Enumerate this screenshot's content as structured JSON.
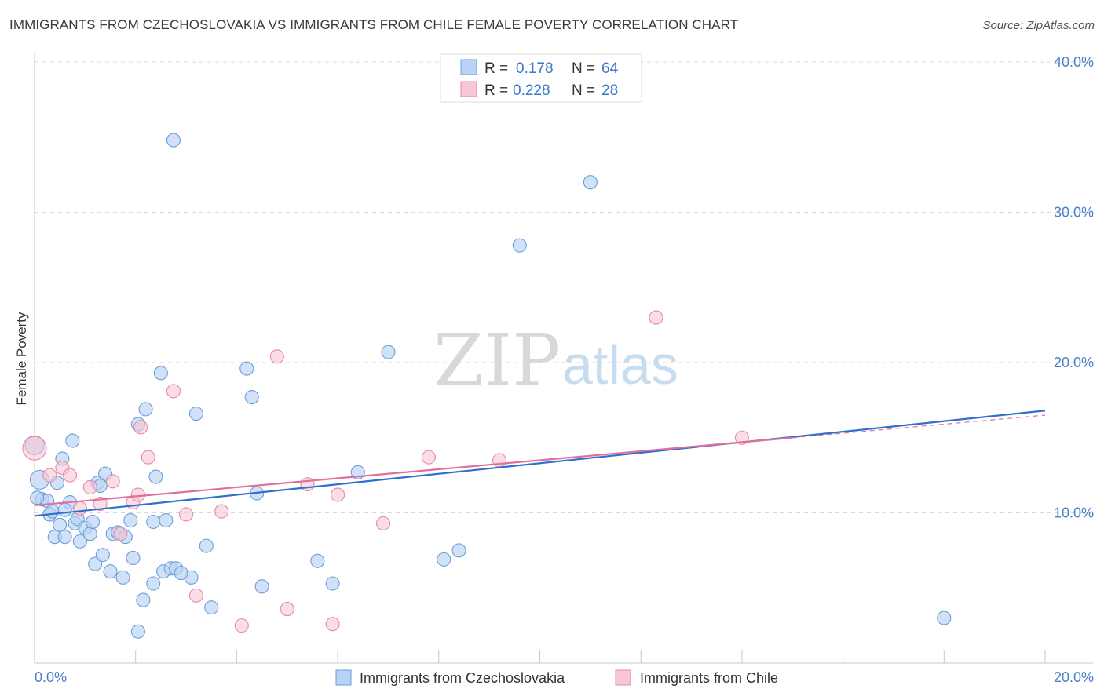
{
  "header": {
    "title": "IMMIGRANTS FROM CZECHOSLOVAKIA VS IMMIGRANTS FROM CHILE FEMALE POVERTY CORRELATION CHART",
    "source": "Source: ZipAtlas.com"
  },
  "watermark": {
    "zip": "ZIP",
    "atlas": "atlas"
  },
  "legend": {
    "rows": [
      {
        "r_label": "R =",
        "r_value": "0.178",
        "n_label": "N =",
        "n_value": "64"
      },
      {
        "r_label": "R =",
        "r_value": "0.228",
        "n_label": "N =",
        "n_value": "28"
      }
    ]
  },
  "colors": {
    "blue_fill": "#b8d3f5",
    "blue_stroke": "#6b9fd8",
    "blue_line": "#2e6fd0",
    "pink_fill": "#f8c6d6",
    "pink_stroke": "#e68aa8",
    "pink_line": "#e0709a",
    "grid": "#d8d8d8",
    "tick_text": "#4a80c8"
  },
  "chart_data": {
    "type": "scatter",
    "title": "IMMIGRANTS FROM CZECHOSLOVAKIA VS IMMIGRANTS FROM CHILE FEMALE POVERTY CORRELATION CHART",
    "xlabel": "",
    "ylabel": "Female Poverty",
    "xlim": [
      0,
      20
    ],
    "ylim": [
      0,
      40
    ],
    "x_tick_labels": [
      "0.0%",
      "20.0%"
    ],
    "y_ticks": [
      10,
      20,
      30,
      40
    ],
    "y_tick_labels": [
      "10.0%",
      "20.0%",
      "30.0%",
      "40.0%"
    ],
    "grid": true,
    "series": [
      {
        "name": "Immigrants from Czechoslovakia",
        "color": "#6b9fd8",
        "R": 0.178,
        "N": 64,
        "trend": {
          "x": [
            0,
            20
          ],
          "y": [
            9.8,
            16.8
          ]
        },
        "points": [
          [
            0.0,
            14.5
          ],
          [
            0.1,
            12.2
          ],
          [
            0.15,
            10.9
          ],
          [
            0.25,
            10.8
          ],
          [
            0.3,
            9.9
          ],
          [
            0.35,
            10.1
          ],
          [
            0.4,
            8.4
          ],
          [
            0.45,
            12.0
          ],
          [
            0.5,
            9.2
          ],
          [
            0.55,
            13.6
          ],
          [
            0.6,
            8.4
          ],
          [
            0.7,
            10.7
          ],
          [
            0.75,
            14.8
          ],
          [
            0.8,
            9.3
          ],
          [
            0.85,
            9.6
          ],
          [
            0.9,
            8.1
          ],
          [
            1.0,
            9.0
          ],
          [
            1.1,
            8.6
          ],
          [
            1.15,
            9.4
          ],
          [
            1.2,
            6.6
          ],
          [
            1.25,
            12.0
          ],
          [
            1.35,
            7.2
          ],
          [
            1.4,
            12.6
          ],
          [
            1.5,
            6.1
          ],
          [
            1.55,
            8.6
          ],
          [
            1.65,
            8.7
          ],
          [
            1.75,
            5.7
          ],
          [
            1.8,
            8.4
          ],
          [
            1.9,
            9.5
          ],
          [
            1.95,
            7.0
          ],
          [
            2.05,
            15.9
          ],
          [
            2.05,
            2.1
          ],
          [
            2.15,
            4.2
          ],
          [
            2.2,
            16.9
          ],
          [
            2.35,
            9.4
          ],
          [
            2.35,
            5.3
          ],
          [
            2.4,
            12.4
          ],
          [
            2.5,
            19.3
          ],
          [
            2.55,
            6.1
          ],
          [
            2.6,
            9.5
          ],
          [
            2.7,
            6.3
          ],
          [
            2.75,
            34.8
          ],
          [
            2.8,
            6.3
          ],
          [
            3.1,
            5.7
          ],
          [
            3.2,
            16.6
          ],
          [
            3.4,
            7.8
          ],
          [
            3.5,
            3.7
          ],
          [
            4.2,
            19.6
          ],
          [
            4.3,
            17.7
          ],
          [
            4.4,
            11.3
          ],
          [
            4.5,
            5.1
          ],
          [
            5.6,
            6.8
          ],
          [
            5.9,
            5.3
          ],
          [
            6.4,
            12.7
          ],
          [
            7.0,
            20.7
          ],
          [
            8.1,
            6.9
          ],
          [
            8.4,
            7.5
          ],
          [
            9.6,
            27.8
          ],
          [
            11.0,
            32.0
          ],
          [
            18.0,
            3.0
          ],
          [
            0.05,
            11.0
          ],
          [
            0.6,
            10.2
          ],
          [
            1.3,
            11.8
          ],
          [
            2.9,
            6.0
          ]
        ]
      },
      {
        "name": "Immigrants from Chile",
        "color": "#e68aa8",
        "R": 0.228,
        "N": 28,
        "trend": {
          "x": [
            0,
            15
          ],
          "y": [
            10.5,
            15.0
          ]
        },
        "trend_ext": {
          "x": [
            15,
            20
          ],
          "y": [
            15.0,
            16.5
          ]
        },
        "points": [
          [
            0.0,
            14.3
          ],
          [
            0.3,
            12.5
          ],
          [
            0.55,
            13.0
          ],
          [
            0.7,
            12.5
          ],
          [
            0.9,
            10.3
          ],
          [
            1.1,
            11.7
          ],
          [
            1.3,
            10.6
          ],
          [
            1.55,
            12.1
          ],
          [
            1.7,
            8.6
          ],
          [
            1.95,
            10.7
          ],
          [
            2.05,
            11.2
          ],
          [
            2.1,
            15.7
          ],
          [
            2.25,
            13.7
          ],
          [
            2.75,
            18.1
          ],
          [
            3.0,
            9.9
          ],
          [
            3.2,
            4.5
          ],
          [
            3.7,
            10.1
          ],
          [
            4.1,
            2.5
          ],
          [
            4.8,
            20.4
          ],
          [
            5.0,
            3.6
          ],
          [
            5.4,
            11.9
          ],
          [
            5.9,
            2.6
          ],
          [
            6.0,
            11.2
          ],
          [
            6.9,
            9.3
          ],
          [
            7.8,
            13.7
          ],
          [
            9.2,
            13.5
          ],
          [
            12.3,
            23.0
          ],
          [
            14.0,
            15.0
          ]
        ]
      }
    ]
  },
  "bottom_legend": {
    "items": [
      "Immigrants from Czechoslovakia",
      "Immigrants from Chile"
    ]
  }
}
